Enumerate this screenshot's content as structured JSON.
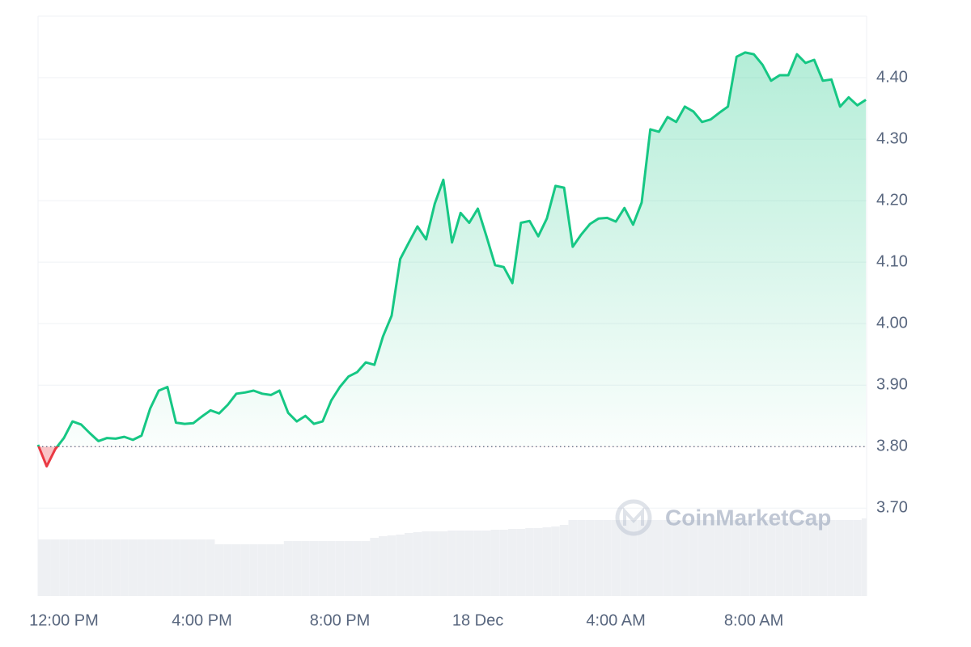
{
  "chart_data": {
    "type": "line",
    "x": [
      -0.75,
      -0.5,
      -0.25,
      0,
      0.25,
      0.5,
      0.75,
      1,
      1.25,
      1.5,
      1.75,
      2,
      2.25,
      2.5,
      2.75,
      3,
      3.25,
      3.5,
      3.75,
      4,
      4.25,
      4.5,
      4.75,
      5,
      5.25,
      5.5,
      5.75,
      6,
      6.25,
      6.5,
      6.75,
      7,
      7.25,
      7.5,
      7.75,
      8,
      8.25,
      8.5,
      8.75,
      9,
      9.25,
      9.5,
      9.75,
      10,
      10.25,
      10.5,
      10.75,
      11,
      11.25,
      11.5,
      11.75,
      12,
      12.25,
      12.5,
      12.75,
      13,
      13.25,
      13.5,
      13.75,
      14,
      14.25,
      14.5,
      14.75,
      15,
      15.25,
      15.5,
      15.75,
      16,
      16.25,
      16.5,
      16.75,
      17,
      17.25,
      17.5,
      17.75,
      18,
      18.25,
      18.5,
      18.75,
      19,
      19.25,
      19.5,
      19.75,
      20,
      20.25,
      20.5,
      20.75,
      21,
      21.25,
      21.5,
      21.75,
      22,
      22.25,
      22.5,
      22.75,
      23,
      23.25
    ],
    "series": [
      {
        "color": "#16c784",
        "below_color": "#ea3943",
        "values": [
          3.803,
          3.768,
          3.796,
          3.814,
          3.841,
          3.836,
          3.822,
          3.809,
          3.814,
          3.813,
          3.816,
          3.811,
          3.818,
          3.862,
          3.891,
          3.897,
          3.839,
          3.837,
          3.838,
          3.849,
          3.859,
          3.854,
          3.868,
          3.886,
          3.888,
          3.891,
          3.886,
          3.884,
          3.891,
          3.855,
          3.841,
          3.85,
          3.837,
          3.841,
          3.875,
          3.897,
          3.914,
          3.921,
          3.937,
          3.933,
          3.979,
          4.013,
          4.105,
          4.132,
          4.158,
          4.137,
          4.195,
          4.234,
          4.132,
          4.18,
          4.164,
          4.187,
          4.142,
          4.095,
          4.092,
          4.066,
          4.164,
          4.167,
          4.142,
          4.171,
          4.224,
          4.221,
          4.125,
          4.145,
          4.162,
          4.171,
          4.172,
          4.166,
          4.188,
          4.161,
          4.197,
          4.316,
          4.312,
          4.336,
          4.328,
          4.353,
          4.345,
          4.328,
          4.332,
          4.343,
          4.353,
          4.434,
          4.441,
          4.438,
          4.421,
          4.395,
          4.404,
          4.404,
          4.438,
          4.424,
          4.429,
          4.395,
          4.397,
          4.353,
          4.368,
          4.355,
          4.364
        ]
      }
    ],
    "volume": {
      "color": "#eef0f3",
      "lim": [
        0,
        100
      ],
      "values": [
        70,
        70,
        70,
        70,
        70,
        70,
        70,
        70,
        70,
        70,
        70,
        70,
        70,
        70,
        70,
        70,
        70,
        70,
        70,
        70,
        70,
        64,
        64,
        64,
        64,
        64,
        64,
        64,
        64,
        68,
        68,
        68,
        68,
        68,
        68,
        68,
        68,
        68,
        68,
        72,
        74,
        75,
        76,
        78,
        79,
        80,
        80,
        80,
        81,
        81,
        81,
        81,
        81,
        82,
        82,
        83,
        83,
        84,
        84,
        85,
        86,
        88,
        94,
        94,
        94,
        94,
        94,
        94,
        94,
        94,
        94,
        94,
        94,
        94,
        94,
        94,
        94,
        94,
        94,
        94,
        94,
        94,
        94,
        94,
        94,
        94,
        94,
        94,
        94,
        94,
        94,
        94,
        94,
        94,
        94,
        94,
        96
      ]
    },
    "reference_line": 3.8,
    "xlim": [
      -0.75,
      23.27
    ],
    "xticks": [
      {
        "value": 0,
        "label": "12:00 PM"
      },
      {
        "value": 4,
        "label": "4:00 PM"
      },
      {
        "value": 8,
        "label": "8:00 PM"
      },
      {
        "value": 12,
        "label": "18 Dec"
      },
      {
        "value": 16,
        "label": "4:00 AM"
      },
      {
        "value": 20,
        "label": "8:00 AM"
      }
    ],
    "ylim": [
      3.557,
      4.5
    ],
    "yticks": [
      {
        "value": 3.7,
        "label": "3.70"
      },
      {
        "value": 3.8,
        "label": "3.80"
      },
      {
        "value": 3.9,
        "label": "3.90"
      },
      {
        "value": 4.0,
        "label": "4.00"
      },
      {
        "value": 4.1,
        "label": "4.10"
      },
      {
        "value": 4.2,
        "label": "4.20"
      },
      {
        "value": 4.3,
        "label": "4.30"
      },
      {
        "value": 4.4,
        "label": "4.40"
      }
    ],
    "grid": true,
    "watermark": "CoinMarketCap"
  }
}
